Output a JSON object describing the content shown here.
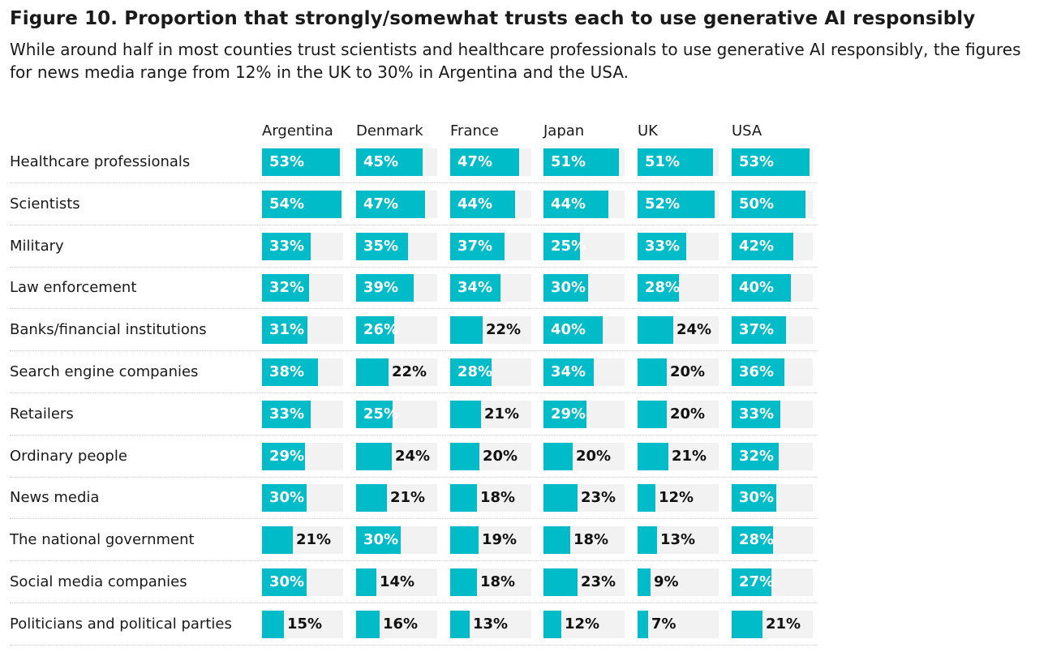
{
  "title": "Figure 10. Proportion that strongly/somewhat trusts each to use generative AI responsibly",
  "subtitle": "While around half in most counties trust scientists and healthcare professionals to use generative AI responsibly, the figures for news media range from 12% in the UK to 30% in Argentina and the USA.",
  "colors": {
    "bar": "#00bcc9",
    "track": "#f2f2f2"
  },
  "chart_data": {
    "type": "bar",
    "orientation": "horizontal",
    "value_suffix": "%",
    "xlim": [
      0,
      55
    ],
    "countries": [
      "Argentina",
      "Denmark",
      "France",
      "Japan",
      "UK",
      "USA"
    ],
    "categories": [
      "Healthcare professionals",
      "Scientists",
      "Military",
      "Law enforcement",
      "Banks/financial institutions",
      "Search engine companies",
      "Retailers",
      "Ordinary people",
      "News media",
      "The national government",
      "Social media companies",
      "Politicians and political parties"
    ],
    "series": [
      {
        "name": "Argentina",
        "values": [
          53,
          54,
          33,
          32,
          31,
          38,
          33,
          29,
          30,
          21,
          30,
          15
        ]
      },
      {
        "name": "Denmark",
        "values": [
          45,
          47,
          35,
          39,
          26,
          22,
          25,
          24,
          21,
          30,
          14,
          16
        ]
      },
      {
        "name": "France",
        "values": [
          47,
          44,
          37,
          34,
          22,
          28,
          21,
          20,
          18,
          19,
          18,
          13
        ]
      },
      {
        "name": "Japan",
        "values": [
          51,
          44,
          25,
          30,
          40,
          34,
          29,
          20,
          23,
          18,
          23,
          12
        ]
      },
      {
        "name": "UK",
        "values": [
          51,
          52,
          33,
          28,
          24,
          20,
          20,
          21,
          12,
          13,
          9,
          7
        ]
      },
      {
        "name": "USA",
        "values": [
          53,
          50,
          42,
          40,
          37,
          36,
          33,
          32,
          30,
          28,
          27,
          21
        ]
      }
    ]
  }
}
